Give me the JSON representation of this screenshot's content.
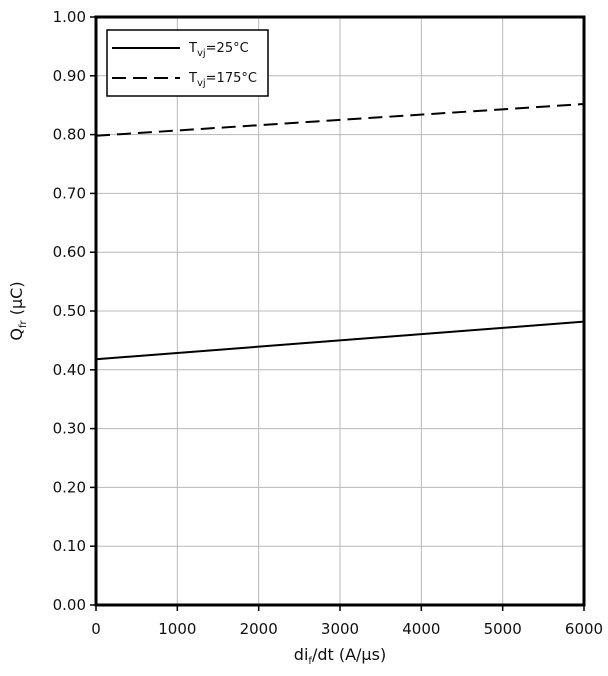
{
  "chart_data": {
    "type": "line",
    "xlabel": {
      "main": "di",
      "sub": "f",
      "rest": "/dt  (A/µs)"
    },
    "ylabel": {
      "main": "Q",
      "sub": "fr",
      "rest": " (µC)"
    },
    "xlim": [
      0,
      6000
    ],
    "ylim": [
      0.0,
      1.0
    ],
    "x_ticks": [
      0,
      1000,
      2000,
      3000,
      4000,
      5000,
      6000
    ],
    "x_tick_labels": [
      "0",
      "1000",
      "2000",
      "3000",
      "4000",
      "5000",
      "6000"
    ],
    "y_ticks": [
      0.0,
      0.1,
      0.2,
      0.3,
      0.4,
      0.5,
      0.6,
      0.7,
      0.8,
      0.9,
      1.0
    ],
    "y_tick_labels": [
      "0.00",
      "0.10",
      "0.20",
      "0.30",
      "0.40",
      "0.50",
      "0.60",
      "0.70",
      "0.80",
      "0.90",
      "1.00"
    ],
    "grid": true,
    "legend_position": "top-left",
    "series": [
      {
        "name": "Tvj=25°C",
        "legend": {
          "main": "T",
          "sub": "vj",
          "rest": "=25°C"
        },
        "line_style": "solid",
        "color": "#000000",
        "x": [
          0,
          6000
        ],
        "y": [
          0.418,
          0.482
        ]
      },
      {
        "name": "Tvj=175°C",
        "legend": {
          "main": "T",
          "sub": "vj",
          "rest": "=175°C"
        },
        "line_style": "dashed",
        "color": "#000000",
        "x": [
          0,
          6000
        ],
        "y": [
          0.798,
          0.852
        ]
      }
    ]
  }
}
